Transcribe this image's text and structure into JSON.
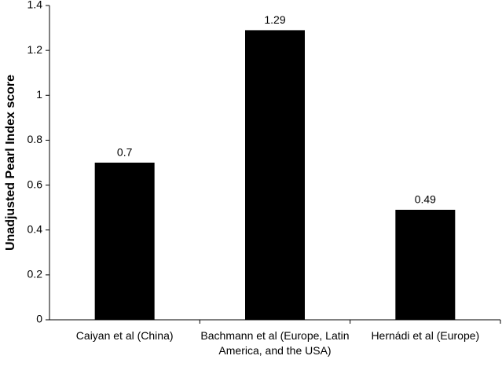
{
  "chart_data": {
    "type": "bar",
    "y_label": "Unadjusted Pearl Index score",
    "categories": [
      "Caiyan et al (China)",
      "Bachmann et al (Europe, Latin America, and the USA)",
      "Hernádi et al (Europe)"
    ],
    "values": [
      0.7,
      1.29,
      0.49
    ],
    "color": "#000000",
    "ylim": [
      0,
      1.4
    ],
    "yticks": [
      0,
      0.2,
      0.4,
      0.6,
      0.8,
      1,
      1.2,
      1.4
    ],
    "grid": false,
    "data_labels": true
  }
}
